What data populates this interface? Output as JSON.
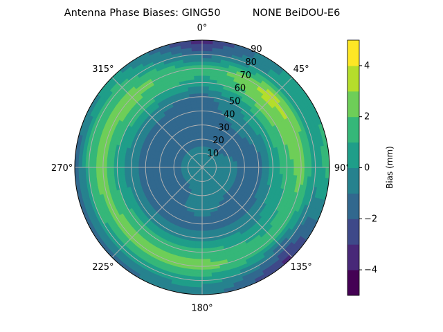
{
  "chart_data": {
    "type": "polar-contour",
    "title": "Antenna Phase Biases: GING50          NONE BeiDOU-E6",
    "angular_tick_labels": [
      "0°",
      "45°",
      "90°",
      "135°",
      "180°",
      "225°",
      "270°",
      "315°"
    ],
    "angular_ticks": [
      0,
      45,
      90,
      135,
      180,
      225,
      270,
      315
    ],
    "radial_tick_labels": [
      "10",
      "20",
      "30",
      "40",
      "50",
      "60",
      "70",
      "80",
      "90"
    ],
    "radial_ticks": [
      10,
      20,
      30,
      40,
      50,
      60,
      70,
      80,
      90
    ],
    "rlim": [
      0,
      90
    ],
    "theta_zero": "N",
    "theta_direction": "clockwise",
    "grid": true,
    "levels": [
      -5,
      -4,
      -3,
      -2,
      -1,
      0,
      1,
      2,
      3,
      4,
      5
    ],
    "colormap": "viridis",
    "level_colors": [
      "#440154",
      "#482878",
      "#3e4989",
      "#31688e",
      "#26828e",
      "#1f9e89",
      "#35b779",
      "#6ece58",
      "#b5de2b",
      "#fde725"
    ],
    "colorbar": {
      "label": "Bias (mm)",
      "ticks": [
        -4,
        -2,
        0,
        2,
        4
      ],
      "tick_labels": [
        "−4",
        "−2",
        "0",
        "2",
        "4"
      ],
      "range": [
        -5,
        5
      ]
    },
    "azimuth": [
      0,
      45,
      90,
      135,
      180,
      225,
      270,
      315
    ],
    "radius": [
      0,
      10,
      20,
      30,
      40,
      50,
      60,
      70,
      80,
      90
    ],
    "z": [
      [
        -0.5,
        -0.5,
        -1.5,
        -1.5,
        -1.5,
        -1.5,
        0.5,
        1.5,
        -1.5,
        -3.5
      ],
      [
        -0.5,
        -0.5,
        -1.5,
        -1.5,
        -0.5,
        0.5,
        2.5,
        3.5,
        0.5,
        0.5
      ],
      [
        -0.5,
        -0.5,
        -0.5,
        -1.5,
        -1.5,
        0.5,
        1.5,
        2.5,
        0.5,
        1.5
      ],
      [
        -0.5,
        -0.5,
        -0.5,
        -1.5,
        -1.5,
        -0.5,
        0.5,
        1.5,
        -1.5,
        -3.5
      ],
      [
        -0.5,
        -0.5,
        -0.5,
        -0.5,
        -1.5,
        -0.5,
        1.5,
        2.5,
        0.5,
        -0.5
      ],
      [
        -0.5,
        -0.5,
        -1.5,
        -1.5,
        -1.5,
        -0.5,
        1.5,
        2.5,
        0.5,
        -1.5
      ],
      [
        -0.5,
        -0.5,
        -1.5,
        -1.5,
        -1.5,
        -0.5,
        0.5,
        2.5,
        1.5,
        -2.5
      ],
      [
        -0.5,
        -0.5,
        -1.5,
        -1.5,
        -1.5,
        -0.5,
        1.5,
        2.5,
        1.5,
        0.5
      ]
    ]
  }
}
